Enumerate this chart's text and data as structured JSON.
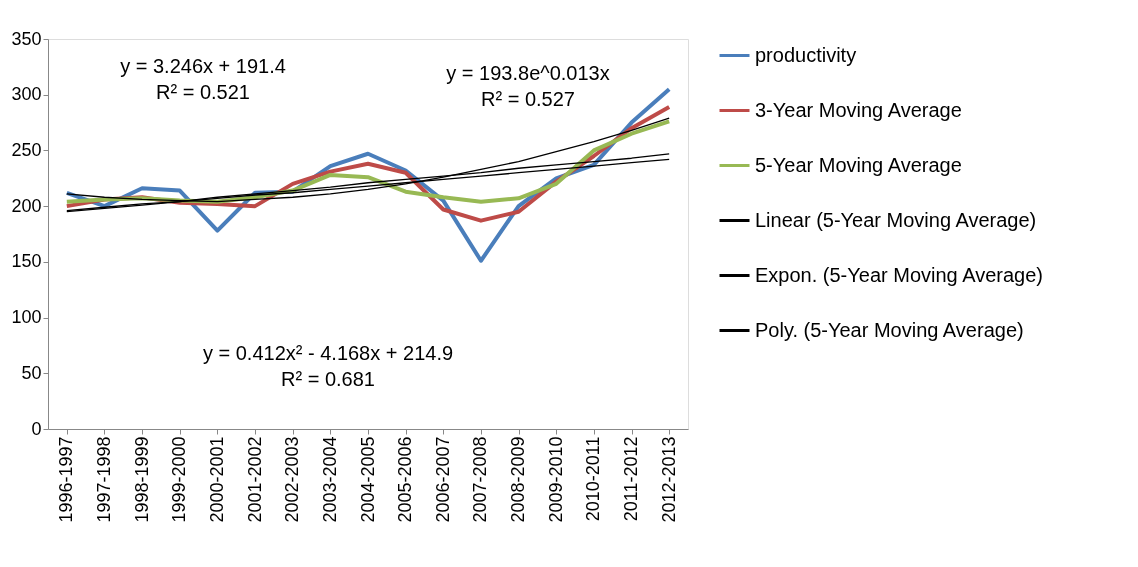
{
  "chart_data": {
    "type": "line",
    "categories": [
      "1996-1997",
      "1997-1998",
      "1998-1999",
      "1999-2000",
      "2000-2001",
      "2001-2002",
      "2002-2003",
      "2003-2004",
      "2004-2005",
      "2005-2006",
      "2006-2007",
      "2007-2008",
      "2008-2009",
      "2009-2010",
      "2010-2011",
      "2011-2012",
      "2012-2013"
    ],
    "series": [
      {
        "name": "productivity",
        "color": "#4a7ebb",
        "values": [
          212,
          200,
          216,
          214,
          178,
          212,
          213,
          236,
          247,
          232,
          205,
          151,
          200,
          225,
          237,
          275,
          305
        ]
      },
      {
        "name": "3-Year Moving Average",
        "color": "#be4b48",
        "values": [
          200,
          206,
          208,
          203,
          202,
          200,
          220,
          231,
          238,
          230,
          197,
          187,
          195,
          222,
          245,
          270,
          289
        ]
      },
      {
        "name": "5-Year Moving Average",
        "color": "#98b954",
        "values": [
          204,
          206,
          207,
          205,
          204,
          208,
          214,
          228,
          226,
          213,
          208,
          204,
          207,
          220,
          250,
          265,
          276
        ]
      },
      {
        "name": "Linear (5-Year Moving Average)",
        "color": "#000000",
        "values": [
          195,
          198,
          201,
          204,
          208,
          211,
          214,
          217,
          221,
          224,
          227,
          230,
          234,
          237,
          240,
          243,
          247
        ]
      },
      {
        "name": "Expon. (5-Year Moving Average)",
        "color": "#000000",
        "values": [
          196,
          199,
          202,
          204,
          207,
          210,
          212,
          215,
          218,
          221,
          224,
          227,
          230,
          233,
          236,
          239,
          242
        ]
      },
      {
        "name": "Poly. (5-Year Moving Average)",
        "color": "#000000",
        "values": [
          211,
          208,
          206,
          205,
          204,
          206,
          208,
          211,
          215,
          220,
          226,
          233,
          240,
          249,
          258,
          268,
          279
        ]
      }
    ],
    "ylim": [
      0,
      350
    ],
    "yticks": [
      0,
      50,
      100,
      150,
      200,
      250,
      300,
      350
    ],
    "grid": false,
    "legend": "right",
    "marker": "none",
    "line_style": "solid",
    "annotations": [
      "y = 3.246x + 191.4\nR² = 0.521",
      "y = 193.8e^0.013x\nR² = 0.527",
      "y = 0.412x² - 4.168x + 214.9\nR² = 0.681"
    ]
  }
}
